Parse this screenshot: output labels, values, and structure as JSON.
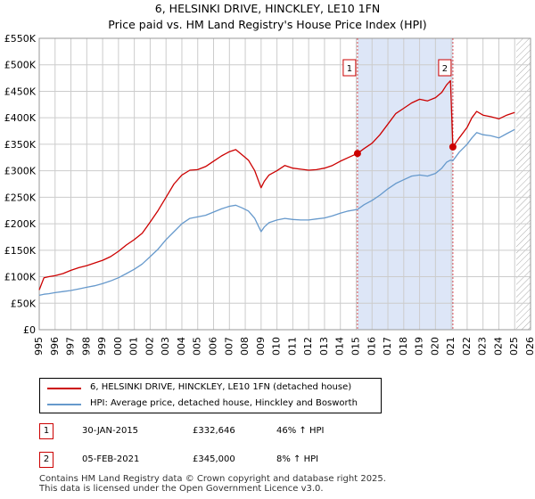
{
  "title": {
    "line1": "6, HELSINKI DRIVE, HINCKLEY, LE10 1FN",
    "line2": "Price paid vs. HM Land Registry's House Price Index (HPI)"
  },
  "colors": {
    "property": "#cc0000",
    "hpi": "#6699cc",
    "shade": "#dde6f7",
    "grid": "#cccccc"
  },
  "chart_data": {
    "type": "line",
    "title": "6, HELSINKI DRIVE, HINCKLEY, LE10 1FN — Price paid vs. HM Land Registry's House Price Index (HPI)",
    "xlabel": "",
    "ylabel": "",
    "xlim": [
      1995,
      2026
    ],
    "ylim": [
      0,
      550000
    ],
    "grid": true,
    "y_ticks": [
      0,
      50000,
      100000,
      150000,
      200000,
      250000,
      300000,
      350000,
      400000,
      450000,
      500000,
      550000
    ],
    "y_tick_labels": [
      "£0",
      "£50K",
      "£100K",
      "£150K",
      "£200K",
      "£250K",
      "£300K",
      "£350K",
      "£400K",
      "£450K",
      "£500K",
      "£550K"
    ],
    "x_ticks": [
      1995,
      1996,
      1997,
      1998,
      1999,
      2000,
      2001,
      2002,
      2003,
      2004,
      2005,
      2006,
      2007,
      2008,
      2009,
      2010,
      2011,
      2012,
      2013,
      2014,
      2015,
      2016,
      2017,
      2018,
      2019,
      2020,
      2021,
      2022,
      2023,
      2024,
      2025,
      2026
    ],
    "x_tick_labels": [
      "1995",
      "1996",
      "1997",
      "1998",
      "1999",
      "2000",
      "2001",
      "2002",
      "2003",
      "2004",
      "2005",
      "2006",
      "2007",
      "2008",
      "2009",
      "2010",
      "2011",
      "2012",
      "2013",
      "2014",
      "2015",
      "2016",
      "2017",
      "2018",
      "2019",
      "2020",
      "2021",
      "2022",
      "2023",
      "2024",
      "2025",
      "2026"
    ],
    "shaded_range": [
      2015.08,
      2021.1
    ],
    "hatched_from": 2025.1,
    "series": [
      {
        "name": "6, HELSINKI DRIVE, HINCKLEY, LE10 1FN (detached house)",
        "color": "#cc0000",
        "x": [
          1995.0,
          1995.3,
          1995.6,
          1996.0,
          1996.5,
          1997.0,
          1997.5,
          1998.0,
          1998.5,
          1999.0,
          1999.5,
          2000.0,
          2000.5,
          2001.0,
          2001.5,
          2002.0,
          2002.5,
          2003.0,
          2003.5,
          2004.0,
          2004.5,
          2005.0,
          2005.5,
          2006.0,
          2006.5,
          2007.0,
          2007.4,
          2007.8,
          2008.2,
          2008.6,
          2009.0,
          2009.2,
          2009.5,
          2010.0,
          2010.5,
          2011.0,
          2011.5,
          2012.0,
          2012.5,
          2013.0,
          2013.5,
          2014.0,
          2014.5,
          2015.08,
          2015.5,
          2016.0,
          2016.5,
          2017.0,
          2017.5,
          2018.0,
          2018.5,
          2019.0,
          2019.5,
          2020.0,
          2020.4,
          2020.7,
          2020.95,
          2021.1,
          2021.5,
          2022.0,
          2022.3,
          2022.6,
          2023.0,
          2023.5,
          2024.0,
          2024.5,
          2025.0
        ],
        "y": [
          75000,
          98000,
          100000,
          102000,
          106000,
          112000,
          117000,
          121000,
          126000,
          131000,
          138000,
          148000,
          160000,
          170000,
          182000,
          203000,
          225000,
          250000,
          275000,
          292000,
          301000,
          302000,
          308000,
          318000,
          328000,
          336000,
          340000,
          330000,
          320000,
          300000,
          268000,
          280000,
          292000,
          300000,
          310000,
          305000,
          303000,
          301000,
          302000,
          305000,
          310000,
          318000,
          325000,
          332646,
          342000,
          352000,
          368000,
          388000,
          408000,
          418000,
          428000,
          435000,
          432000,
          438000,
          448000,
          462000,
          470000,
          345000,
          362000,
          382000,
          400000,
          412000,
          405000,
          402000,
          398000,
          405000,
          410000
        ]
      },
      {
        "name": "HPI: Average price, detached house, Hinckley and Bosworth",
        "color": "#6699cc",
        "x": [
          1995.0,
          1995.3,
          1995.6,
          1996.0,
          1996.5,
          1997.0,
          1997.5,
          1998.0,
          1998.5,
          1999.0,
          1999.5,
          2000.0,
          2000.5,
          2001.0,
          2001.5,
          2002.0,
          2002.5,
          2003.0,
          2003.5,
          2004.0,
          2004.5,
          2005.0,
          2005.5,
          2006.0,
          2006.5,
          2007.0,
          2007.4,
          2007.8,
          2008.2,
          2008.6,
          2009.0,
          2009.2,
          2009.5,
          2010.0,
          2010.5,
          2011.0,
          2011.5,
          2012.0,
          2012.5,
          2013.0,
          2013.5,
          2014.0,
          2014.5,
          2015.08,
          2015.5,
          2016.0,
          2016.5,
          2017.0,
          2017.5,
          2018.0,
          2018.5,
          2019.0,
          2019.5,
          2020.0,
          2020.4,
          2020.7,
          2020.95,
          2021.1,
          2021.5,
          2022.0,
          2022.3,
          2022.6,
          2023.0,
          2023.5,
          2024.0,
          2024.5,
          2025.0
        ],
        "y": [
          65000,
          67000,
          68000,
          70000,
          72000,
          74000,
          77000,
          80000,
          83000,
          87000,
          92000,
          98000,
          106000,
          114000,
          124000,
          138000,
          152000,
          170000,
          185000,
          200000,
          210000,
          213000,
          216000,
          222000,
          228000,
          233000,
          235000,
          230000,
          224000,
          210000,
          185000,
          194000,
          202000,
          207000,
          210000,
          208000,
          207000,
          207000,
          209000,
          211000,
          215000,
          220000,
          224000,
          227000,
          236000,
          244000,
          254000,
          266000,
          276000,
          283000,
          290000,
          292000,
          290000,
          295000,
          305000,
          316000,
          320000,
          319000,
          335000,
          350000,
          362000,
          372000,
          368000,
          366000,
          362000,
          370000,
          378000
        ]
      }
    ],
    "annotations": [
      {
        "label": "1",
        "x": 2015.08,
        "y": 332646
      },
      {
        "label": "2",
        "x": 2021.1,
        "y": 345000
      }
    ]
  },
  "legend": {
    "property_label": "6, HELSINKI DRIVE, HINCKLEY, LE10 1FN (detached house)",
    "hpi_label": "HPI: Average price, detached house, Hinckley and Bosworth"
  },
  "sales": [
    {
      "badge": "1",
      "date": "30-JAN-2015",
      "price": "£332,646",
      "hpi": "46% ↑ HPI"
    },
    {
      "badge": "2",
      "date": "05-FEB-2021",
      "price": "£345,000",
      "hpi": "8% ↑ HPI"
    }
  ],
  "footer": {
    "line1": "Contains HM Land Registry data © Crown copyright and database right 2025.",
    "line2": "This data is licensed under the Open Government Licence v3.0."
  }
}
